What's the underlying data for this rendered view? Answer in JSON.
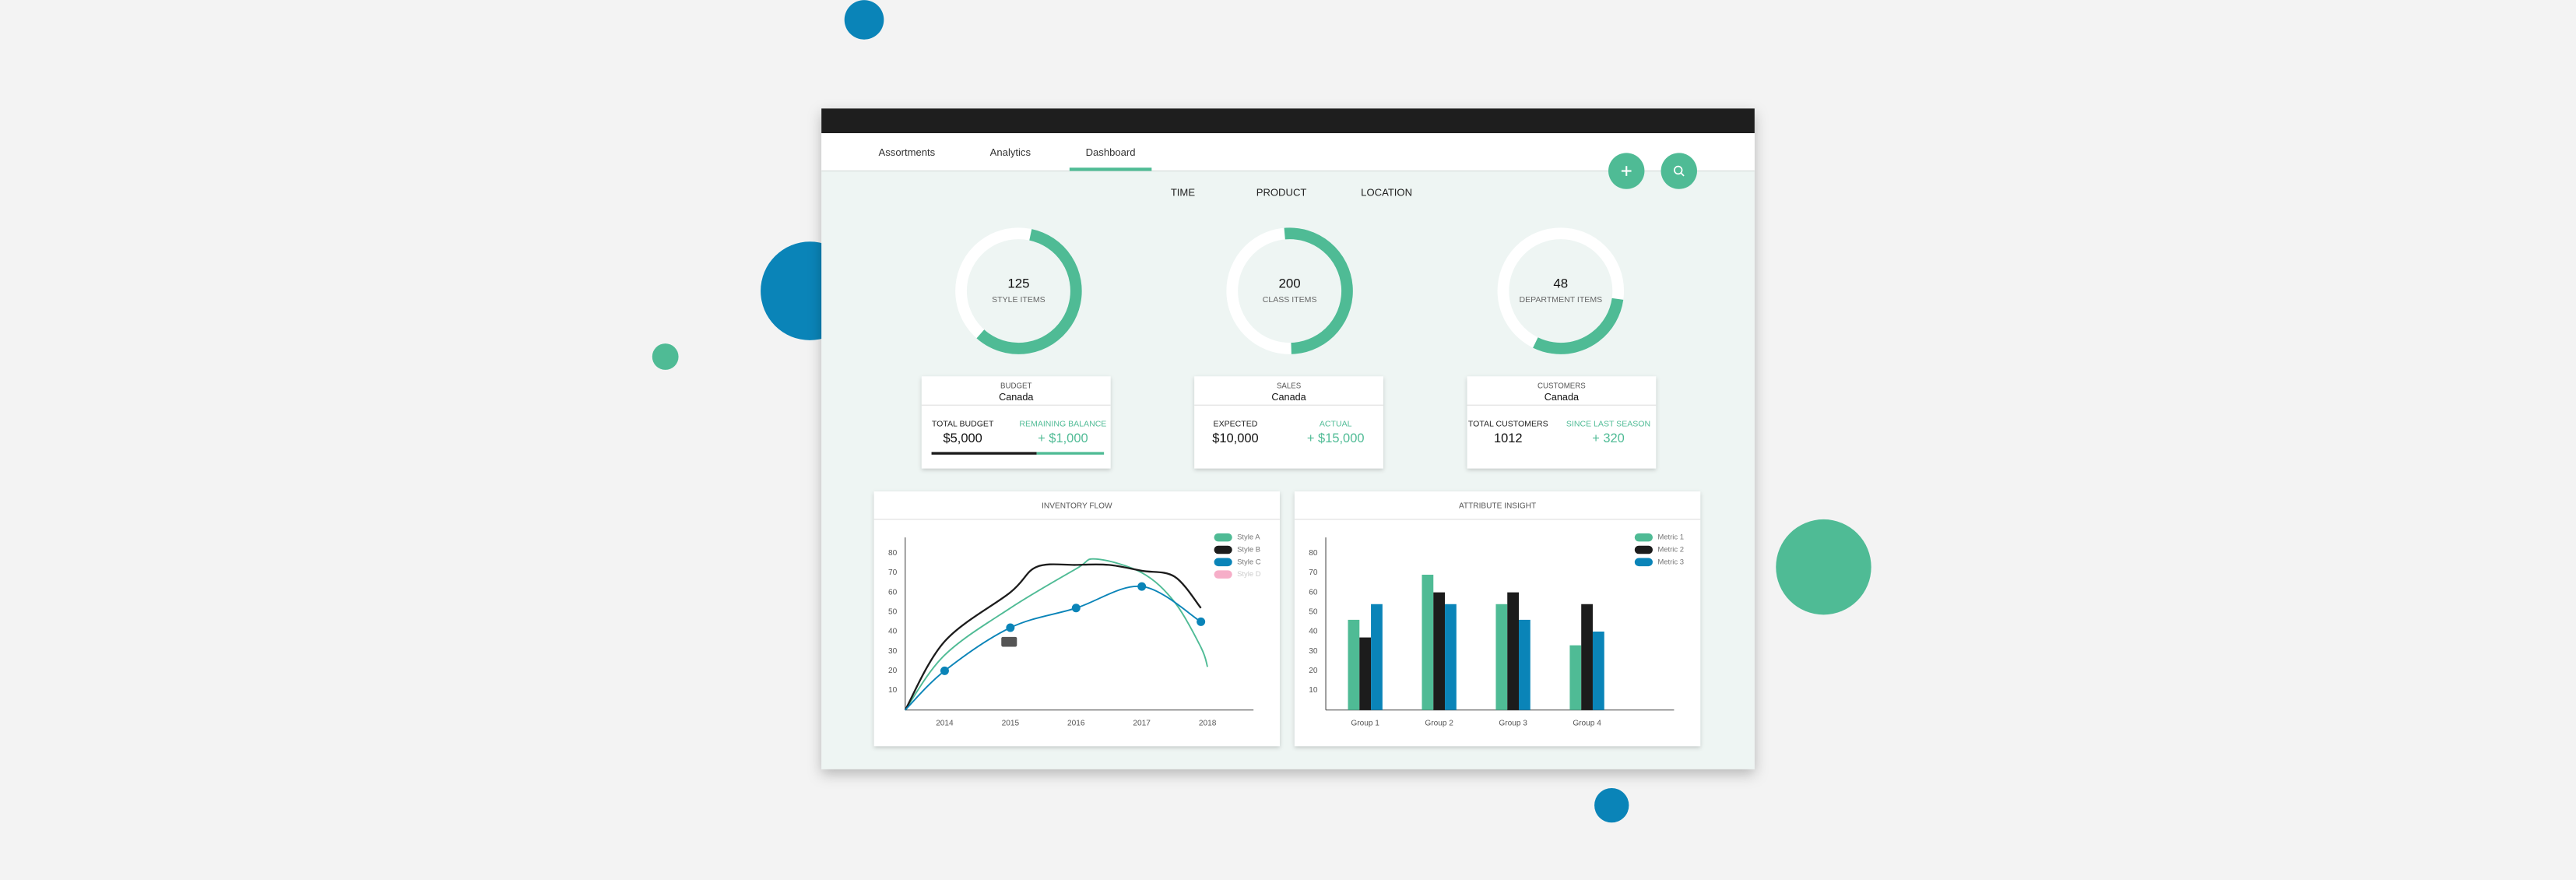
{
  "nav": {
    "tabs": [
      "Assortments",
      "Analytics",
      "Dashboard"
    ]
  },
  "filters": [
    "TIME",
    "PRODUCT",
    "LOCATION"
  ],
  "summary": [
    {
      "value": 125,
      "label": "STYLE ITEMS"
    },
    {
      "value": 200,
      "label": "CLASS ITEMS"
    },
    {
      "value": 48,
      "label": "DEPARTMENT ITEMS"
    }
  ],
  "cards": [
    {
      "title": "BUDGET",
      "region": "Canada",
      "left_label": "TOTAL BUDGET",
      "left_value": "$5,000",
      "right_label": "REMAINING BALANCE",
      "right_value": "+ $1,000"
    },
    {
      "title": "SALES",
      "region": "Canada",
      "left_label": "EXPECTED",
      "left_value": "$10,000",
      "right_label": "ACTUAL",
      "right_value": "+ $15,000"
    },
    {
      "title": "CUSTOMERS",
      "region": "Canada",
      "left_label": "TOTAL CUSTOMERS",
      "left_value": "1012",
      "right_label": "SINCE LAST SEASON",
      "right_value": "+ 320"
    }
  ],
  "chart_data": [
    {
      "type": "line",
      "title": "INVENTORY FLOW",
      "xlim": [
        2013.4,
        2018.7
      ],
      "xticks": [
        2014,
        2015,
        2016,
        2017,
        2018
      ],
      "ylim": [
        0,
        88
      ],
      "yticks": [
        10,
        20,
        30,
        40,
        50,
        60,
        70,
        80
      ],
      "series": [
        {
          "name": "Style A",
          "color": "#4fbb95",
          "x": [
            2013.4,
            2014,
            2015,
            2016,
            2016.3,
            2017,
            2017.5,
            2017.9,
            2018
          ],
          "values": [
            0,
            28,
            52,
            72,
            77,
            70,
            55,
            32,
            22
          ]
        },
        {
          "name": "Style B",
          "color": "#1c1c1c",
          "x": [
            2013.4,
            2014,
            2015,
            2015.4,
            2016,
            2016.5,
            2017,
            2017.5,
            2017.9
          ],
          "values": [
            0,
            35,
            60,
            73,
            74,
            74,
            71,
            68,
            52
          ]
        },
        {
          "name": "Style C",
          "color": "#0a84b8",
          "markers": true,
          "x": [
            2013.4,
            2014,
            2015,
            2016,
            2017,
            2017.9
          ],
          "values": [
            0,
            20,
            42,
            52,
            63,
            45
          ]
        },
        {
          "name": "Style D",
          "color": "#f28cb1"
        }
      ]
    },
    {
      "type": "bar",
      "title": "ATTRIBUTE INSIGHT",
      "categories": [
        "Group 1",
        "Group 2",
        "Group 3",
        "Group 4"
      ],
      "ylim": [
        0,
        88
      ],
      "yticks": [
        10,
        20,
        30,
        40,
        50,
        60,
        70,
        80
      ],
      "series": [
        {
          "name": "Metric 1",
          "color": "#4fbb95",
          "values": [
            46,
            69,
            54,
            33
          ]
        },
        {
          "name": "Metric 2",
          "color": "#1c1c1c",
          "values": [
            37,
            60,
            60,
            54
          ]
        },
        {
          "name": "Metric 3",
          "color": "#0a84b8",
          "values": [
            54,
            54,
            46,
            40
          ]
        }
      ]
    }
  ]
}
